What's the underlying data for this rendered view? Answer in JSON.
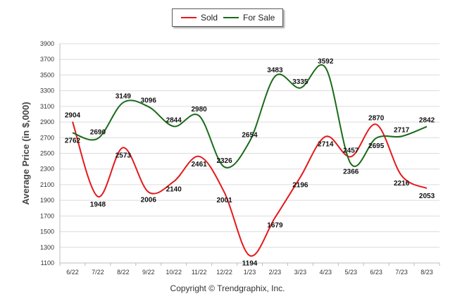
{
  "copyright": "Copyright © Trendgraphix, Inc.",
  "legend": [
    {
      "name": "Sold",
      "color": "#e41a1c"
    },
    {
      "name": "For Sale",
      "color": "#1a6b1a"
    }
  ],
  "chart_data": {
    "type": "line",
    "title": "",
    "xlabel": "",
    "ylabel": "Average Price (in $,000)",
    "ylim": [
      1100,
      3900
    ],
    "yticks": [
      1100,
      1300,
      1500,
      1700,
      1900,
      2100,
      2300,
      2500,
      2700,
      2900,
      3100,
      3300,
      3500,
      3700,
      3900
    ],
    "grid": true,
    "legend_position": "top",
    "categories": [
      "6/22",
      "7/22",
      "8/22",
      "9/22",
      "10/22",
      "11/22",
      "12/22",
      "1/23",
      "2/23",
      "3/23",
      "4/23",
      "5/23",
      "6/23",
      "7/23",
      "8/23"
    ],
    "series": [
      {
        "name": "Sold",
        "color": "#e41a1c",
        "values": [
          2904,
          1948,
          2573,
          2006,
          2140,
          2461,
          2001,
          1194,
          1679,
          2196,
          2714,
          2457,
          2870,
          2216,
          2053
        ]
      },
      {
        "name": "For Sale",
        "color": "#1a6b1a",
        "values": [
          2762,
          2690,
          3149,
          3096,
          2844,
          2980,
          2326,
          2654,
          3483,
          3335,
          3592,
          2366,
          2695,
          2717,
          2842
        ]
      }
    ]
  }
}
